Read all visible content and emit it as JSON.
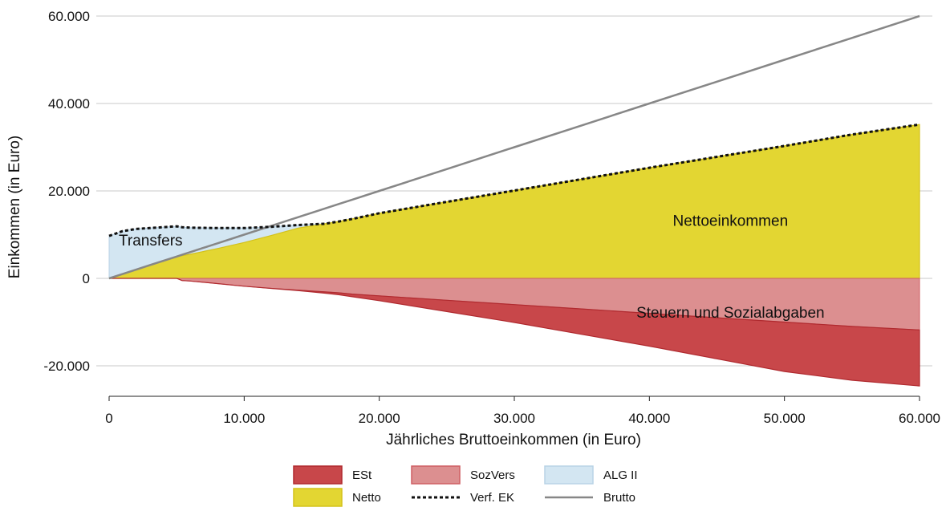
{
  "chart_data": {
    "type": "area",
    "xlabel": "Jährliches Bruttoeinkommen (in Euro)",
    "ylabel": "Einkommen (in Euro)",
    "xlim": [
      0,
      60000
    ],
    "ylim": [
      -25000,
      62000
    ],
    "x_ticks": [
      {
        "value": 0,
        "label": "0"
      },
      {
        "value": 10000,
        "label": "10.000"
      },
      {
        "value": 20000,
        "label": "20.000"
      },
      {
        "value": 30000,
        "label": "30.000"
      },
      {
        "value": 40000,
        "label": "40.000"
      },
      {
        "value": 50000,
        "label": "50.000"
      },
      {
        "value": 60000,
        "label": "60.000"
      }
    ],
    "y_ticks": [
      {
        "value": -20000,
        "label": "-20.000"
      },
      {
        "value": 0,
        "label": "0"
      },
      {
        "value": 20000,
        "label": "20.000"
      },
      {
        "value": 40000,
        "label": "40.000"
      },
      {
        "value": 60000,
        "label": "60.000"
      }
    ],
    "grid": "horizontal",
    "legend_position": "bottom",
    "x": [
      0,
      1000,
      2000,
      3000,
      4000,
      5000,
      5400,
      6000,
      8000,
      10000,
      12000,
      14000,
      16000,
      17000,
      18000,
      20000,
      25000,
      30000,
      35000,
      40000,
      45000,
      50000,
      55000,
      60000
    ],
    "series": [
      {
        "key": "est",
        "name": "ESt",
        "color": "#c8474a",
        "stroke": "#b02a2f",
        "values": [
          0,
          0,
          0,
          0,
          0,
          0,
          0,
          0,
          0,
          0,
          0,
          -100,
          -300,
          -450,
          -600,
          -1100,
          -2600,
          -4100,
          -5800,
          -7500,
          -9400,
          -11300,
          -12300,
          -12800
        ]
      },
      {
        "key": "sozvers",
        "name": "SozVers",
        "color": "#dc8f90",
        "stroke": "#cf5f63",
        "values": [
          0,
          0,
          0,
          0,
          0,
          0,
          -500,
          -600,
          -1200,
          -1800,
          -2300,
          -2700,
          -3100,
          -3300,
          -3600,
          -4000,
          -5000,
          -6000,
          -7000,
          -8000,
          -9000,
          -10000,
          -11000,
          -11800
        ]
      },
      {
        "key": "alg2",
        "name": "ALG II",
        "color": "#d3e6f2",
        "stroke": "#b9d3e6",
        "values": [
          9700,
          9800,
          9300,
          8500,
          7700,
          6900,
          6500,
          6100,
          4700,
          3300,
          2000,
          700,
          0,
          0,
          0,
          0,
          0,
          0,
          0,
          0,
          0,
          0,
          0,
          0
        ]
      },
      {
        "key": "netto",
        "name": "Netto",
        "color": "#e3d632",
        "stroke": "#d4c21a",
        "values": [
          0,
          1000,
          2000,
          3000,
          4000,
          5000,
          5200,
          5500,
          6800,
          8200,
          9800,
          11500,
          12500,
          13000,
          13600,
          14900,
          17500,
          20100,
          22700,
          25300,
          27800,
          30300,
          32900,
          35200
        ]
      },
      {
        "key": "verf_ek",
        "name": "Verf. EK",
        "color": "#111111",
        "dash": "4 3",
        "values": [
          9700,
          10800,
          11300,
          11500,
          11700,
          11900,
          11700,
          11600,
          11500,
          11500,
          11800,
          12200,
          12500,
          13000,
          13600,
          14900,
          17500,
          20100,
          22700,
          25300,
          27800,
          30300,
          32900,
          35200
        ]
      },
      {
        "key": "brutto",
        "name": "Brutto",
        "color": "#878787",
        "values": [
          0,
          1000,
          2000,
          3000,
          4000,
          5000,
          5400,
          6000,
          8000,
          10000,
          12000,
          14000,
          16000,
          17000,
          18000,
          20000,
          25000,
          30000,
          35000,
          40000,
          45000,
          50000,
          55000,
          60000
        ]
      }
    ],
    "annotations": [
      {
        "text": "Transfers",
        "x": 4200,
        "y": 7500
      },
      {
        "text": "Nettoeinkommen",
        "x": 46000,
        "y": 12000
      },
      {
        "text": "Steuern und Sozialabgaben",
        "x": 46000,
        "y": -9000
      }
    ],
    "legend": [
      {
        "series": "est",
        "label": "ESt"
      },
      {
        "series": "sozvers",
        "label": "SozVers"
      },
      {
        "series": "alg2",
        "label": "ALG II"
      },
      {
        "series": "netto",
        "label": "Netto"
      },
      {
        "series": "verf_ek",
        "label": "Verf. EK"
      },
      {
        "series": "brutto",
        "label": "Brutto"
      }
    ]
  }
}
